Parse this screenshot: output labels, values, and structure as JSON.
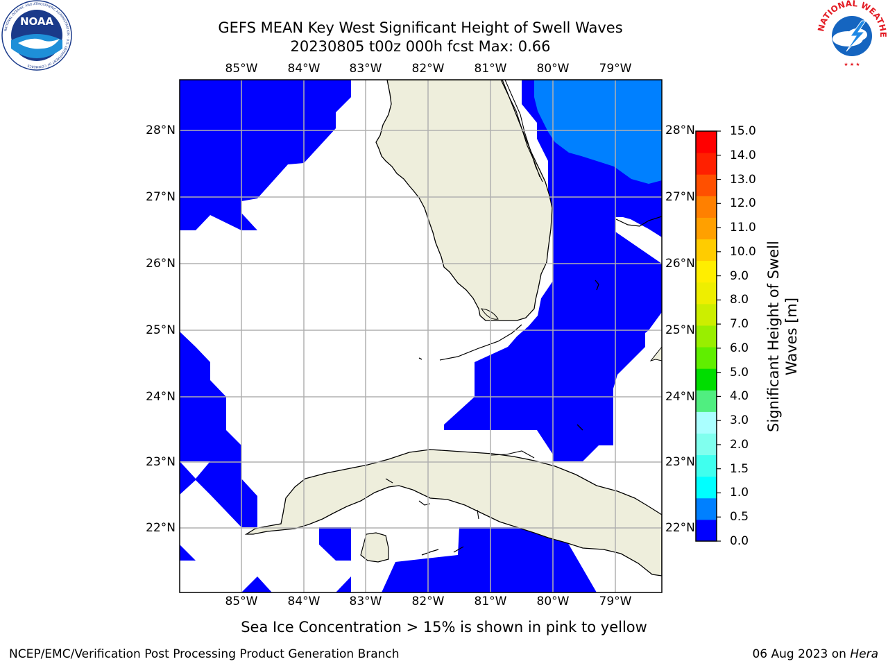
{
  "header": {
    "title_line1": "GEFS MEAN Key West Significant Height of Swell Waves",
    "title_line2": "20230805 t00z 000h fcst   Max: 0.66"
  },
  "logos": {
    "left": "noaa-logo",
    "right": "national-weather-service-logo",
    "left_text": "NOAA",
    "left_ring_text": "NATIONAL OCEANIC AND ATMOSPHERIC ADMINISTRATION · U.S. DEPARTMENT OF COMMERCE",
    "right_ring_text": "NATIONAL WEATHER SERVICE"
  },
  "map": {
    "region": "Key West",
    "lon_labels": [
      "85°W",
      "84°W",
      "83°W",
      "82°W",
      "81°W",
      "80°W",
      "79°W"
    ],
    "lat_labels": [
      "28°N",
      "27°N",
      "26°N",
      "25°N",
      "24°N",
      "23°N",
      "22°N"
    ],
    "lon_range": [
      -86.0,
      -78.25
    ],
    "lat_range": [
      21.05,
      28.75
    ],
    "land_color": "#eeeedc",
    "ocean_color": "#ffffff",
    "grid_color": "#b0b0b0",
    "swell_0_0_5_color": "#0000ff",
    "swell_0_5_1_0_color": "#0080ff"
  },
  "colorbar": {
    "label": "Significant Height of Swell Waves [m]",
    "ticks": [
      "0.0",
      "0.5",
      "1.0",
      "1.5",
      "2.0",
      "3.0",
      "4.0",
      "5.0",
      "6.0",
      "7.0",
      "8.0",
      "9.0",
      "10.0",
      "11.0",
      "12.0",
      "13.0",
      "14.0",
      "15.0"
    ],
    "colors": [
      "#0000ff",
      "#0080ff",
      "#00ffff",
      "#40ffee",
      "#80ffee",
      "#aaffff",
      "#50ee80",
      "#00dd00",
      "#60ee00",
      "#99ee00",
      "#ccee00",
      "#eeee00",
      "#ffee00",
      "#ffcc00",
      "#ffa000",
      "#ff8000",
      "#ff5000",
      "#ff2000",
      "#ff0000"
    ]
  },
  "footer": {
    "footnote": "Sea Ice Concentration > 15% is shown in pink to yellow",
    "credit": "NCEP/EMC/Verification Post Processing Product Generation Branch",
    "date": "06 Aug 2023 on",
    "machine": "Hera"
  }
}
